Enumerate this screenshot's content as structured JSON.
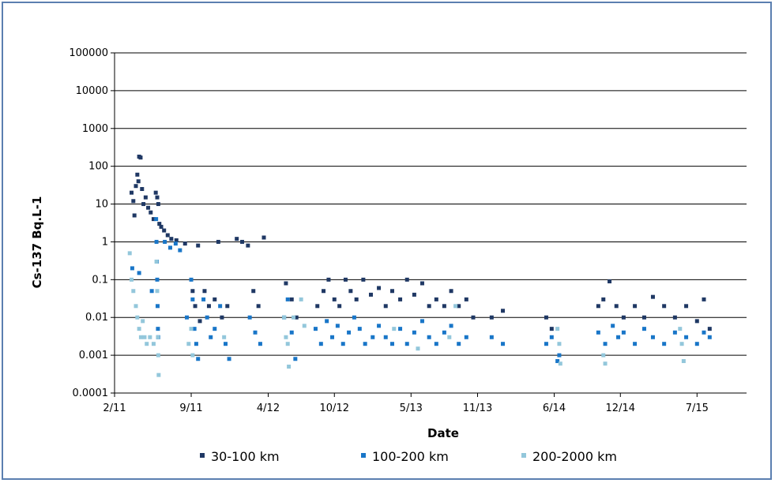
{
  "chart_data": {
    "type": "scatter",
    "title": "",
    "xlabel": "Date",
    "ylabel": "Cs-137 Bq.L-1",
    "y_scale": "log",
    "ylim": [
      0.0001,
      100000
    ],
    "y_ticks": [
      "100000",
      "10000",
      "1000",
      "100",
      "10",
      "1",
      "0.1",
      "0.01",
      "0.001",
      "0.0001"
    ],
    "xlim": [
      "2011-02-01",
      "2015-11-15"
    ],
    "x_ticks": [
      {
        "date": "2011-02-01",
        "label": "2/11"
      },
      {
        "date": "2011-09-01",
        "label": "9/11"
      },
      {
        "date": "2012-04-01",
        "label": "4/12"
      },
      {
        "date": "2012-10-01",
        "label": "10/12"
      },
      {
        "date": "2013-05-01",
        "label": "5/13"
      },
      {
        "date": "2013-11-01",
        "label": "11/13"
      },
      {
        "date": "2014-06-01",
        "label": "6/14"
      },
      {
        "date": "2014-12-01",
        "label": "12/14"
      },
      {
        "date": "2015-07-01",
        "label": "7/15"
      }
    ],
    "grid": "horizontal",
    "legend": "bottom",
    "series": [
      {
        "name": "30-100 km",
        "color": "#1f3864",
        "points": [
          [
            "2011-03-20",
            20
          ],
          [
            "2011-03-25",
            12
          ],
          [
            "2011-03-28",
            5
          ],
          [
            "2011-04-01",
            30
          ],
          [
            "2011-04-05",
            60
          ],
          [
            "2011-04-08",
            40
          ],
          [
            "2011-04-10",
            180
          ],
          [
            "2011-04-14",
            170
          ],
          [
            "2011-04-18",
            25
          ],
          [
            "2011-04-22",
            10
          ],
          [
            "2011-04-28",
            15
          ],
          [
            "2011-05-05",
            8
          ],
          [
            "2011-05-12",
            6
          ],
          [
            "2011-05-20",
            4
          ],
          [
            "2011-05-26",
            20
          ],
          [
            "2011-05-30",
            15
          ],
          [
            "2011-06-02",
            10
          ],
          [
            "2011-06-05",
            3
          ],
          [
            "2011-06-10",
            2.5
          ],
          [
            "2011-06-18",
            2
          ],
          [
            "2011-06-28",
            1.5
          ],
          [
            "2011-07-08",
            1.2
          ],
          [
            "2011-07-22",
            1.1
          ],
          [
            "2011-08-15",
            0.9
          ],
          [
            "2011-09-20",
            0.8
          ],
          [
            "2011-09-05",
            0.05
          ],
          [
            "2011-09-12",
            0.02
          ],
          [
            "2011-09-25",
            0.008
          ],
          [
            "2011-10-08",
            0.05
          ],
          [
            "2011-10-20",
            0.02
          ],
          [
            "2011-11-05",
            0.03
          ],
          [
            "2011-11-15",
            1.0
          ],
          [
            "2011-11-25",
            0.01
          ],
          [
            "2011-12-10",
            0.02
          ],
          [
            "2012-01-05",
            1.2
          ],
          [
            "2012-01-20",
            1.0
          ],
          [
            "2012-02-05",
            0.8
          ],
          [
            "2012-02-20",
            0.05
          ],
          [
            "2012-03-05",
            0.02
          ],
          [
            "2012-03-20",
            1.3
          ],
          [
            "2012-05-20",
            0.08
          ],
          [
            "2012-06-05",
            0.03
          ],
          [
            "2012-06-18",
            0.01
          ],
          [
            "2012-08-15",
            0.02
          ],
          [
            "2012-09-01",
            0.05
          ],
          [
            "2012-09-15",
            0.1
          ],
          [
            "2012-10-01",
            0.03
          ],
          [
            "2012-10-15",
            0.02
          ],
          [
            "2012-11-01",
            0.1
          ],
          [
            "2012-11-15",
            0.05
          ],
          [
            "2012-12-01",
            0.03
          ],
          [
            "2012-12-20",
            0.1
          ],
          [
            "2013-01-10",
            0.04
          ],
          [
            "2013-02-01",
            0.06
          ],
          [
            "2013-02-20",
            0.02
          ],
          [
            "2013-03-10",
            0.05
          ],
          [
            "2013-04-01",
            0.03
          ],
          [
            "2013-04-20",
            0.1
          ],
          [
            "2013-05-10",
            0.04
          ],
          [
            "2013-06-01",
            0.08
          ],
          [
            "2013-06-20",
            0.02
          ],
          [
            "2013-07-10",
            0.03
          ],
          [
            "2013-08-01",
            0.02
          ],
          [
            "2013-08-20",
            0.05
          ],
          [
            "2013-09-10",
            0.02
          ],
          [
            "2013-10-01",
            0.03
          ],
          [
            "2013-10-20",
            0.01
          ],
          [
            "2013-12-10",
            0.01
          ],
          [
            "2014-01-10",
            0.015
          ],
          [
            "2014-05-10",
            0.01
          ],
          [
            "2014-05-25",
            0.005
          ],
          [
            "2014-10-01",
            0.02
          ],
          [
            "2014-10-15",
            0.03
          ],
          [
            "2014-11-01",
            0.09
          ],
          [
            "2014-11-20",
            0.02
          ],
          [
            "2014-12-10",
            0.01
          ],
          [
            "2015-01-10",
            0.02
          ],
          [
            "2015-02-05",
            0.01
          ],
          [
            "2015-03-01",
            0.035
          ],
          [
            "2015-04-01",
            0.02
          ],
          [
            "2015-05-01",
            0.01
          ],
          [
            "2015-06-01",
            0.02
          ],
          [
            "2015-07-01",
            0.008
          ],
          [
            "2015-07-20",
            0.03
          ],
          [
            "2015-08-05",
            0.005
          ]
        ]
      },
      {
        "name": "100-200 km",
        "color": "#1976c8",
        "points": [
          [
            "2011-03-22",
            0.2
          ],
          [
            "2011-04-10",
            0.15
          ],
          [
            "2011-05-15",
            0.05
          ],
          [
            "2011-05-27",
            4
          ],
          [
            "2011-05-28",
            1
          ],
          [
            "2011-05-29",
            0.3
          ],
          [
            "2011-05-30",
            0.1
          ],
          [
            "2011-05-31",
            0.02
          ],
          [
            "2011-06-01",
            0.005
          ],
          [
            "2011-06-02",
            0.003
          ],
          [
            "2011-06-20",
            1
          ],
          [
            "2011-07-05",
            0.7
          ],
          [
            "2011-07-20",
            0.9
          ],
          [
            "2011-08-01",
            0.6
          ],
          [
            "2011-08-20",
            0.01
          ],
          [
            "2011-09-01",
            0.1
          ],
          [
            "2011-09-05",
            0.03
          ],
          [
            "2011-09-10",
            0.005
          ],
          [
            "2011-09-15",
            0.002
          ],
          [
            "2011-09-20",
            0.0008
          ],
          [
            "2011-10-05",
            0.03
          ],
          [
            "2011-10-15",
            0.01
          ],
          [
            "2011-10-25",
            0.003
          ],
          [
            "2011-11-05",
            0.005
          ],
          [
            "2011-11-20",
            0.02
          ],
          [
            "2011-12-05",
            0.002
          ],
          [
            "2011-12-15",
            0.0008
          ],
          [
            "2012-02-10",
            0.01
          ],
          [
            "2012-02-25",
            0.004
          ],
          [
            "2012-03-10",
            0.002
          ],
          [
            "2012-05-15",
            0.01
          ],
          [
            "2012-05-25",
            0.03
          ],
          [
            "2012-06-05",
            0.004
          ],
          [
            "2012-06-15",
            0.0008
          ],
          [
            "2012-08-10",
            0.005
          ],
          [
            "2012-08-25",
            0.002
          ],
          [
            "2012-09-10",
            0.008
          ],
          [
            "2012-09-25",
            0.003
          ],
          [
            "2012-10-10",
            0.006
          ],
          [
            "2012-10-25",
            0.002
          ],
          [
            "2012-11-10",
            0.004
          ],
          [
            "2012-11-25",
            0.01
          ],
          [
            "2012-12-10",
            0.005
          ],
          [
            "2012-12-25",
            0.002
          ],
          [
            "2013-01-15",
            0.003
          ],
          [
            "2013-02-01",
            0.006
          ],
          [
            "2013-02-20",
            0.003
          ],
          [
            "2013-03-10",
            0.002
          ],
          [
            "2013-04-01",
            0.005
          ],
          [
            "2013-04-20",
            0.002
          ],
          [
            "2013-05-10",
            0.004
          ],
          [
            "2013-06-01",
            0.008
          ],
          [
            "2013-06-20",
            0.003
          ],
          [
            "2013-07-10",
            0.002
          ],
          [
            "2013-08-01",
            0.004
          ],
          [
            "2013-08-20",
            0.006
          ],
          [
            "2013-09-10",
            0.002
          ],
          [
            "2013-10-01",
            0.003
          ],
          [
            "2013-12-10",
            0.003
          ],
          [
            "2014-01-10",
            0.002
          ],
          [
            "2014-05-10",
            0.002
          ],
          [
            "2014-05-25",
            0.003
          ],
          [
            "2014-06-10",
            0.0007
          ],
          [
            "2014-06-15",
            0.001
          ],
          [
            "2014-10-01",
            0.004
          ],
          [
            "2014-10-20",
            0.002
          ],
          [
            "2014-11-10",
            0.006
          ],
          [
            "2014-11-25",
            0.003
          ],
          [
            "2014-12-10",
            0.004
          ],
          [
            "2015-01-10",
            0.002
          ],
          [
            "2015-02-05",
            0.005
          ],
          [
            "2015-03-01",
            0.003
          ],
          [
            "2015-04-01",
            0.002
          ],
          [
            "2015-05-01",
            0.004
          ],
          [
            "2015-06-01",
            0.003
          ],
          [
            "2015-07-01",
            0.002
          ],
          [
            "2015-07-20",
            0.004
          ],
          [
            "2015-08-05",
            0.003
          ]
        ]
      },
      {
        "name": "200-2000 km",
        "color": "#93c7db",
        "points": [
          [
            "2011-03-15",
            0.5
          ],
          [
            "2011-03-20",
            0.1
          ],
          [
            "2011-03-25",
            0.05
          ],
          [
            "2011-04-01",
            0.02
          ],
          [
            "2011-04-05",
            0.01
          ],
          [
            "2011-04-10",
            0.005
          ],
          [
            "2011-04-15",
            0.003
          ],
          [
            "2011-04-20",
            0.008
          ],
          [
            "2011-04-25",
            0.003
          ],
          [
            "2011-05-01",
            0.002
          ],
          [
            "2011-05-10",
            0.003
          ],
          [
            "2011-05-20",
            0.002
          ],
          [
            "2011-05-28",
            0.3
          ],
          [
            "2011-05-30",
            0.05
          ],
          [
            "2011-06-01",
            0.003
          ],
          [
            "2011-06-02",
            0.001
          ],
          [
            "2011-06-03",
            0.0003
          ],
          [
            "2011-08-25",
            0.002
          ],
          [
            "2011-09-01",
            0.005
          ],
          [
            "2011-09-05",
            0.001
          ],
          [
            "2011-12-01",
            0.003
          ],
          [
            "2012-05-15",
            0.01
          ],
          [
            "2012-05-20",
            0.003
          ],
          [
            "2012-05-25",
            0.002
          ],
          [
            "2012-05-28",
            0.0005
          ],
          [
            "2012-06-10",
            0.01
          ],
          [
            "2012-07-01",
            0.03
          ],
          [
            "2012-07-10",
            0.006
          ],
          [
            "2013-03-15",
            0.005
          ],
          [
            "2013-05-20",
            0.0015
          ],
          [
            "2013-08-15",
            0.003
          ],
          [
            "2013-09-01",
            0.02
          ],
          [
            "2014-06-10",
            0.005
          ],
          [
            "2014-06-15",
            0.002
          ],
          [
            "2014-06-18",
            0.0006
          ],
          [
            "2014-10-15",
            0.001
          ],
          [
            "2014-10-20",
            0.0006
          ],
          [
            "2015-05-15",
            0.005
          ],
          [
            "2015-05-20",
            0.002
          ],
          [
            "2015-05-25",
            0.0007
          ]
        ]
      }
    ]
  }
}
